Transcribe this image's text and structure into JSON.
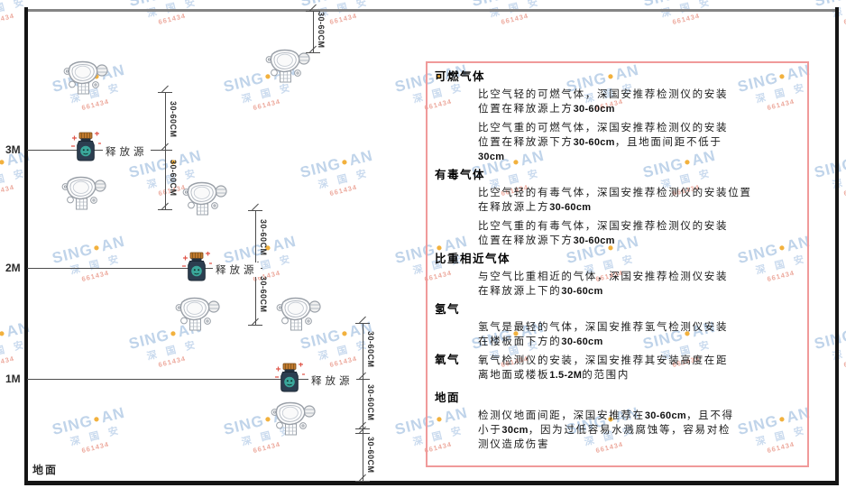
{
  "watermark": {
    "brand_left": "SING",
    "dot": "●",
    "brand_right": "AN",
    "company": "深 国 安",
    "code": "661434",
    "colors": {
      "text": "#c0d4ea",
      "dot": "#f2b13d",
      "code": "#edaa9e"
    }
  },
  "diagram": {
    "height_labels": [
      "3M",
      "2M",
      "1M"
    ],
    "ground_label": "地面",
    "release_label": "释放源",
    "dim_label": "30-60CM"
  },
  "panel": {
    "border_color": "#f09a9a",
    "sections": [
      {
        "heading": "可燃气体",
        "inline": false,
        "paragraphs": [
          [
            "比空气轻的可燃气体，深国安推荐检测仪的安装",
            "位置在释放源上方30-60cm"
          ],
          [
            "比空气重的可燃气体，深国安推荐检测仪的安装",
            "位置在释放源下方30-60cm，且地面间距不低于",
            "30cm"
          ]
        ]
      },
      {
        "heading": "有毒气体",
        "inline": false,
        "paragraphs": [
          [
            "比空气轻的有毒气体，深国安推荐检测仪的安装位置",
            "在释放源上方30-60cm"
          ],
          [
            "比空气重的有毒气体，深国安推荐检测仪的安装",
            "位置在释放源下方30-60cm"
          ]
        ]
      },
      {
        "heading": "比重相近气体",
        "inline": false,
        "paragraphs": [
          [
            "与空气比重相近的气体，深国安推荐检测仪安装",
            "在释放源上下的30-60cm"
          ]
        ]
      },
      {
        "heading": "氢气",
        "inline": false,
        "paragraphs": [
          [
            "氢气是最轻的气体，深国安推荐氢气检测仪安装",
            "在楼板面下方的30-60cm"
          ]
        ]
      },
      {
        "heading": "氧气",
        "inline": true,
        "paragraphs": [
          [
            "氧气检测仪的安装，深国安推荐其安装高度在距",
            "离地面或楼板1.5-2M的范围内"
          ]
        ]
      },
      {
        "heading": "地面",
        "inline": false,
        "paragraphs": [
          [
            "检测仪地面间距，深国安推荐在30-60cm，且不得",
            "小于30cm，因为过低容易水溅腐蚀等，容易对检",
            "测仪造成伤害"
          ]
        ]
      }
    ]
  }
}
